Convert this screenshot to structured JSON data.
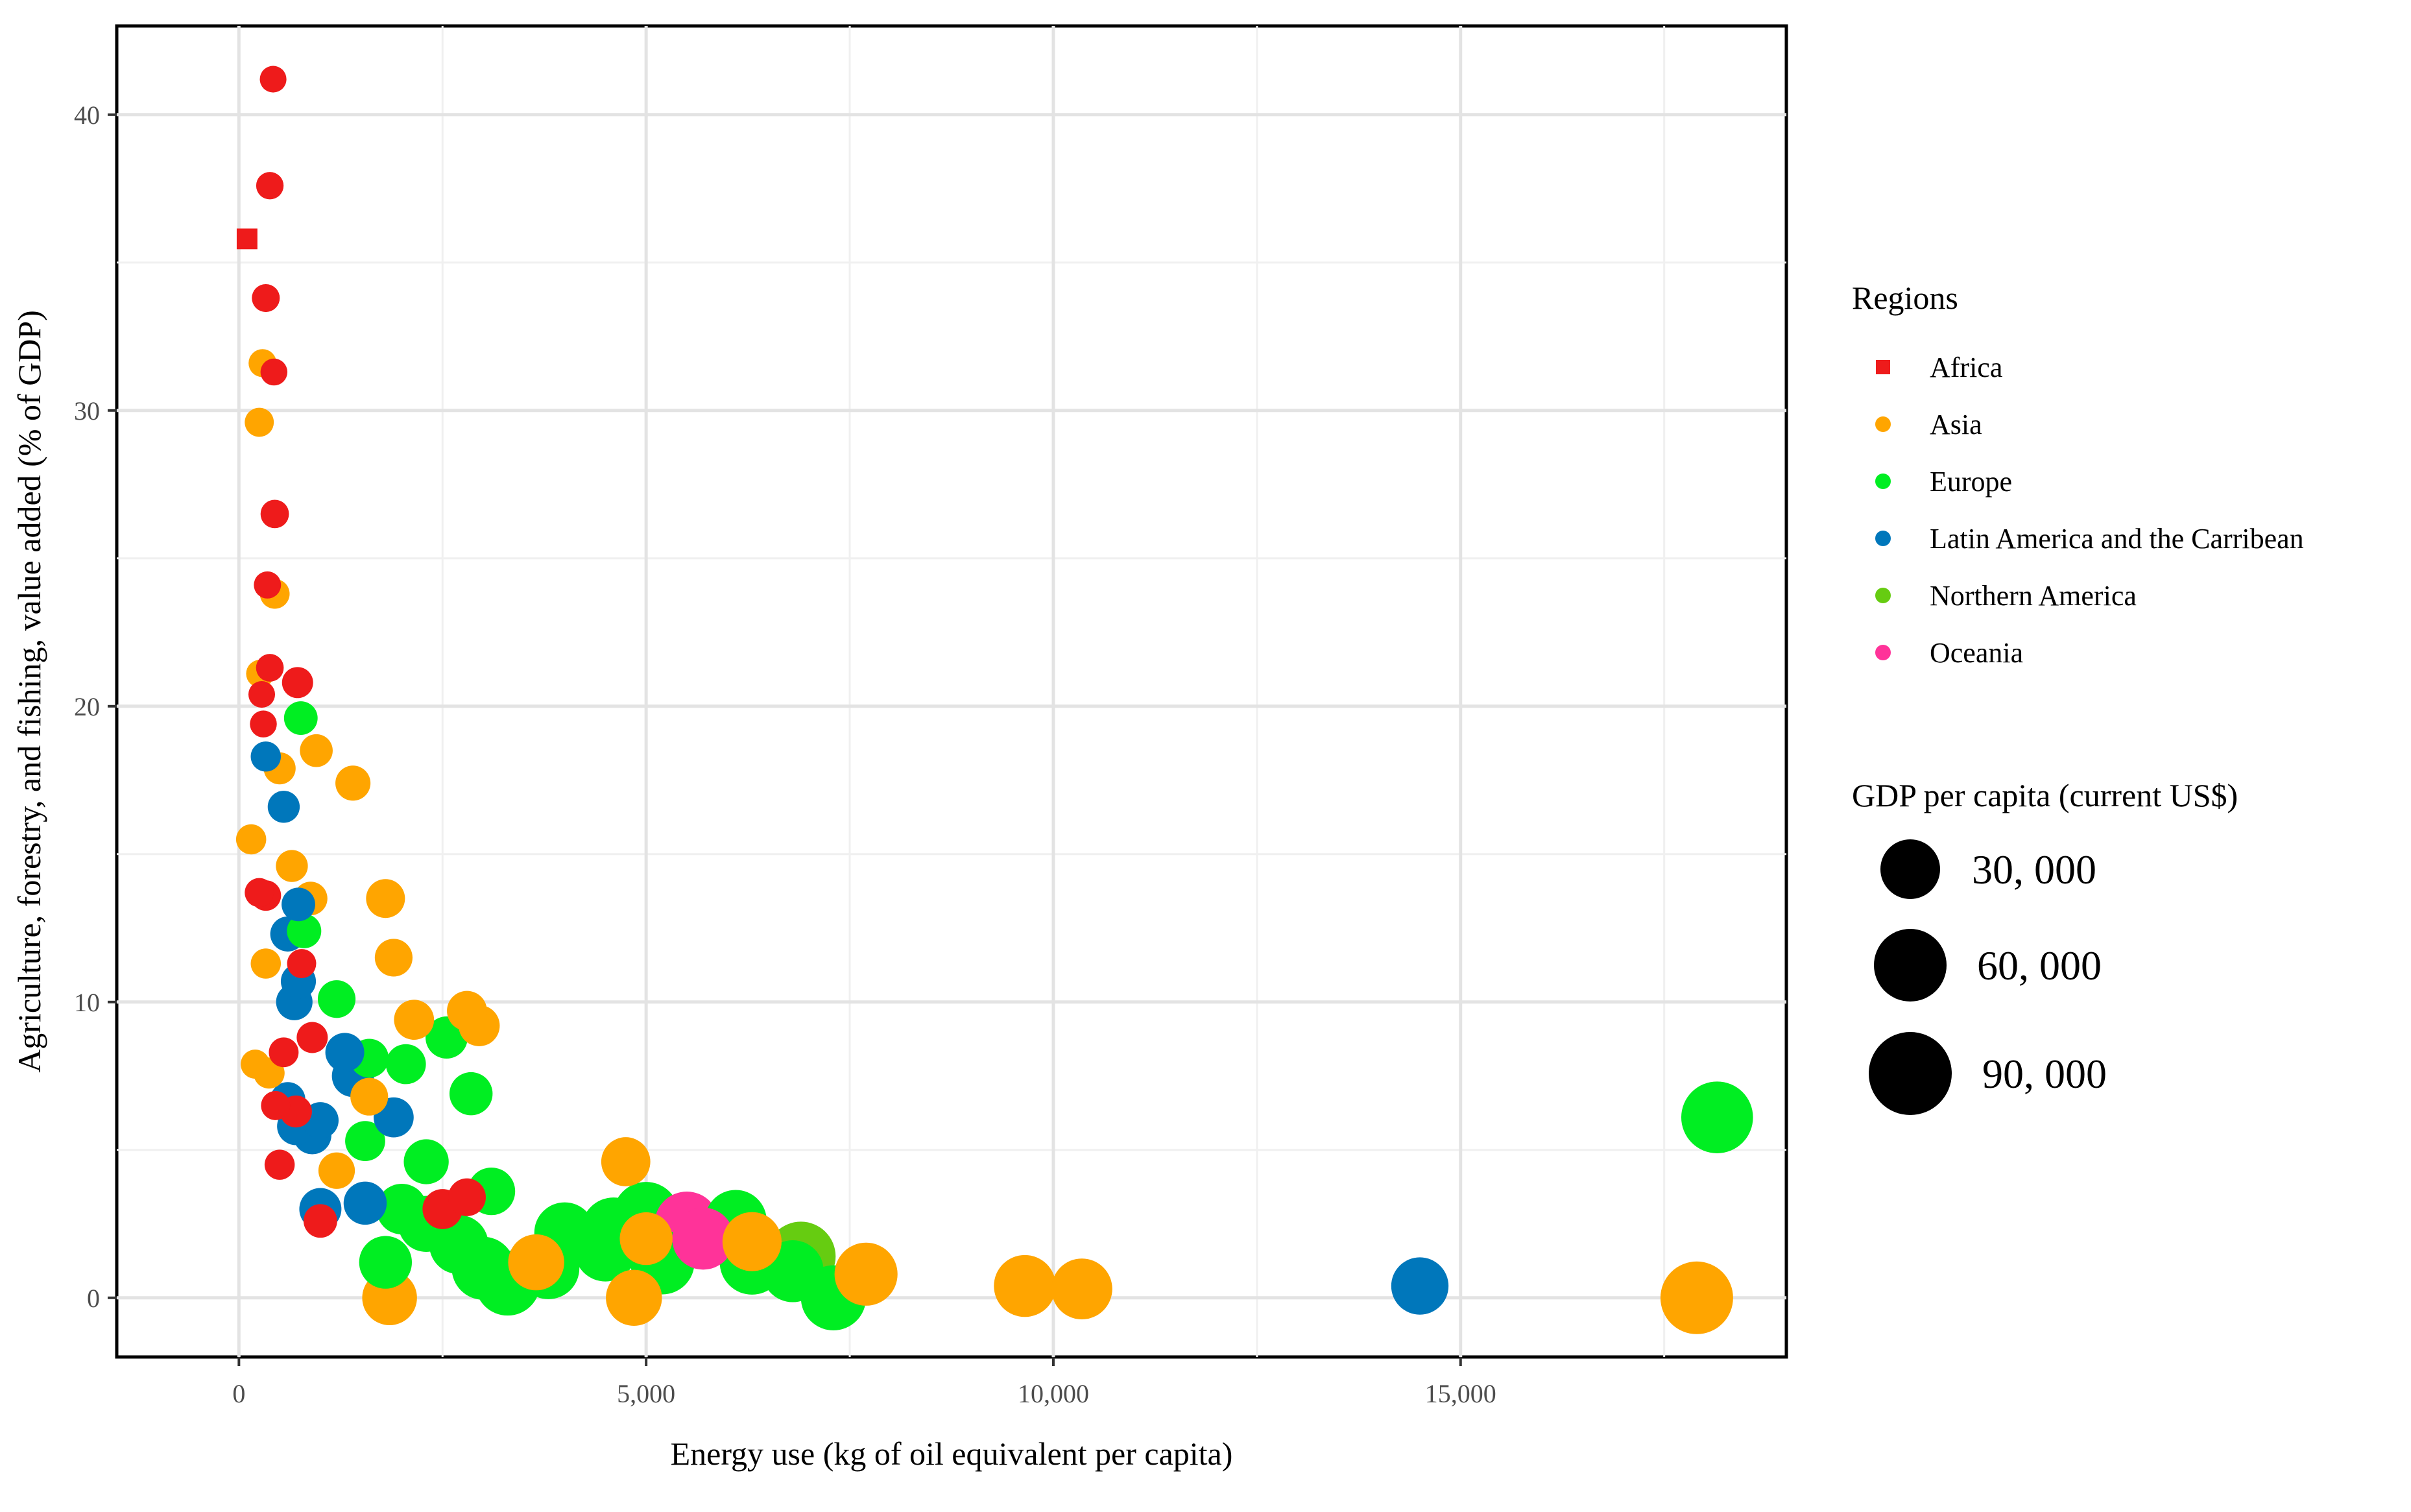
{
  "chart_data": {
    "type": "scatter",
    "title": "",
    "xlabel": "Energy use (kg of oil equivalent per capita)",
    "ylabel": "Agriculture, forestry, and fishing, value added (% of GDP)",
    "xlim": [
      -1500,
      19000
    ],
    "ylim": [
      -2,
      43
    ],
    "xticks": [
      0,
      5000,
      10000,
      15000
    ],
    "xtick_labels": [
      "0",
      "5,000",
      "10,000",
      "15,000"
    ],
    "yticks": [
      0,
      10,
      20,
      30,
      40
    ],
    "ytick_labels": [
      "0",
      "10",
      "20",
      "30",
      "40"
    ],
    "grid": true,
    "legend": {
      "position": "right",
      "color_title": "Regions",
      "size_title": "GDP per capita (current US$)",
      "size_entries": [
        {
          "value": 30000,
          "label": "30, 000"
        },
        {
          "value": 60000,
          "label": "60, 000"
        },
        {
          "value": 90000,
          "label": "90, 000"
        }
      ]
    },
    "series": [
      {
        "name": "Africa",
        "color": "#ee1b1b",
        "points": [
          [
            100,
            35.8,
            800
          ],
          [
            420,
            41.2,
            1500
          ],
          [
            380,
            37.6,
            1800
          ],
          [
            330,
            33.8,
            2000
          ],
          [
            430,
            31.3,
            1600
          ],
          [
            440,
            26.5,
            2200
          ],
          [
            350,
            24.1,
            1700
          ],
          [
            380,
            21.3,
            1900
          ],
          [
            280,
            20.4,
            1500
          ],
          [
            720,
            20.8,
            3500
          ],
          [
            300,
            19.4,
            1600
          ],
          [
            250,
            13.7,
            2500
          ],
          [
            330,
            13.6,
            3200
          ],
          [
            770,
            11.3,
            2500
          ],
          [
            550,
            8.3,
            2800
          ],
          [
            900,
            8.8,
            3500
          ],
          [
            450,
            6.5,
            2500
          ],
          [
            700,
            6.3,
            4000
          ],
          [
            500,
            4.5,
            3000
          ],
          [
            1000,
            2.6,
            5000
          ],
          [
            2800,
            3.4,
            8000
          ],
          [
            2500,
            3.0,
            10000
          ]
        ]
      },
      {
        "name": "Asia",
        "color": "#ffa500",
        "points": [
          [
            290,
            31.6,
            2000
          ],
          [
            250,
            29.6,
            2500
          ],
          [
            440,
            23.8,
            2800
          ],
          [
            260,
            21.1,
            2000
          ],
          [
            500,
            17.9,
            4000
          ],
          [
            950,
            18.5,
            4500
          ],
          [
            1400,
            17.4,
            6000
          ],
          [
            150,
            15.5,
            3000
          ],
          [
            650,
            14.6,
            4000
          ],
          [
            880,
            13.5,
            5000
          ],
          [
            1800,
            13.5,
            9000
          ],
          [
            1900,
            11.5,
            8000
          ],
          [
            330,
            11.3,
            3000
          ],
          [
            2150,
            9.4,
            10000
          ],
          [
            2800,
            9.7,
            10000
          ],
          [
            2950,
            9.2,
            11000
          ],
          [
            200,
            7.9,
            2500
          ],
          [
            370,
            7.6,
            3500
          ],
          [
            1600,
            6.8,
            8000
          ],
          [
            1200,
            4.3,
            7000
          ],
          [
            4750,
            4.6,
            20000
          ],
          [
            1850,
            0.0,
            28000
          ],
          [
            4850,
            0.0,
            30000
          ],
          [
            5000,
            2.0,
            25000
          ],
          [
            6300,
            1.9,
            35000
          ],
          [
            7700,
            0.8,
            42000
          ],
          [
            9650,
            0.4,
            40000
          ],
          [
            10350,
            0.3,
            38000
          ],
          [
            17900,
            0.0,
            62000
          ],
          [
            3650,
            1.2,
            30000
          ]
        ]
      },
      {
        "name": "Europe",
        "color": "#00ee22",
        "points": [
          [
            760,
            19.6,
            5000
          ],
          [
            800,
            12.4,
            5500
          ],
          [
            1200,
            10.1,
            8000
          ],
          [
            1600,
            8.1,
            9000
          ],
          [
            2050,
            7.9,
            10000
          ],
          [
            2550,
            8.8,
            12000
          ],
          [
            2850,
            6.9,
            13000
          ],
          [
            1550,
            5.3,
            10000
          ],
          [
            2300,
            4.6,
            15000
          ],
          [
            3100,
            3.6,
            18000
          ],
          [
            1800,
            1.2,
            25000
          ],
          [
            2300,
            2.5,
            30000
          ],
          [
            2700,
            1.8,
            35000
          ],
          [
            3000,
            1.0,
            42000
          ],
          [
            3300,
            0.5,
            46000
          ],
          [
            3800,
            1.0,
            40000
          ],
          [
            4000,
            2.2,
            38000
          ],
          [
            4600,
            2.3,
            45000
          ],
          [
            5000,
            2.8,
            48000
          ],
          [
            5200,
            1.2,
            44000
          ],
          [
            4500,
            1.6,
            40000
          ],
          [
            6100,
            2.6,
            40000
          ],
          [
            6300,
            1.2,
            45000
          ],
          [
            6800,
            0.9,
            40000
          ],
          [
            7300,
            0.0,
            46000
          ],
          [
            18150,
            6.1,
            60000
          ],
          [
            2000,
            3.0,
            22000
          ]
        ]
      },
      {
        "name": "Latin America and the Carribean",
        "color": "#0077bb",
        "points": [
          [
            330,
            18.3,
            3000
          ],
          [
            550,
            16.6,
            4000
          ],
          [
            730,
            13.3,
            5000
          ],
          [
            600,
            12.3,
            6000
          ],
          [
            730,
            10.7,
            6000
          ],
          [
            680,
            10.0,
            7000
          ],
          [
            1300,
            8.3,
            9000
          ],
          [
            1400,
            7.5,
            12000
          ],
          [
            600,
            6.7,
            6000
          ],
          [
            700,
            5.8,
            8000
          ],
          [
            900,
            5.5,
            8500
          ],
          [
            1000,
            6.0,
            7000
          ],
          [
            1900,
            6.1,
            10000
          ],
          [
            1550,
            3.2,
            13000
          ],
          [
            1000,
            3.0,
            12000
          ],
          [
            14500,
            0.4,
            32000
          ]
        ]
      },
      {
        "name": "Northern America",
        "color": "#66cc11",
        "points": [
          [
            6900,
            1.4,
            55000
          ]
        ]
      },
      {
        "name": "Oceania",
        "color": "#ff3399",
        "points": [
          [
            5500,
            2.5,
            45000
          ],
          [
            5700,
            2.0,
            40000
          ]
        ]
      }
    ]
  }
}
